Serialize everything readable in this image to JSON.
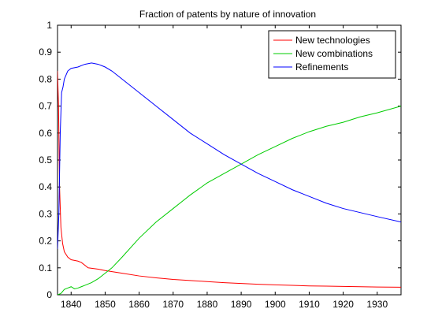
{
  "chart_data": {
    "type": "line",
    "title": "Fraction of patents by nature of innovation",
    "xlabel": "",
    "ylabel": "",
    "xlim": [
      1836,
      1937
    ],
    "ylim": [
      0,
      1
    ],
    "xticks": [
      1840,
      1850,
      1860,
      1870,
      1880,
      1890,
      1900,
      1910,
      1920,
      1930
    ],
    "yticks": [
      0,
      0.1,
      0.2,
      0.3,
      0.4,
      0.5,
      0.6,
      0.7,
      0.8,
      0.9,
      1
    ],
    "ytick_labels": [
      "0",
      "0.1",
      "0.2",
      "0.3",
      "0.4",
      "0.5",
      "0.6",
      "0.7",
      "0.8",
      "0.9",
      "1"
    ],
    "grid": false,
    "legend_position": "top-right",
    "series": [
      {
        "name": "New technologies",
        "color": "#ff0000",
        "x": [
          1836,
          1836.3,
          1836.6,
          1837,
          1837.5,
          1838,
          1839,
          1840,
          1842,
          1843,
          1845,
          1848,
          1850,
          1855,
          1860,
          1865,
          1870,
          1875,
          1880,
          1885,
          1890,
          1895,
          1900,
          1905,
          1910,
          1915,
          1920,
          1925,
          1930,
          1937
        ],
        "y": [
          0.83,
          0.7,
          0.4,
          0.25,
          0.19,
          0.16,
          0.14,
          0.13,
          0.125,
          0.12,
          0.1,
          0.095,
          0.09,
          0.08,
          0.07,
          0.063,
          0.057,
          0.053,
          0.049,
          0.045,
          0.042,
          0.039,
          0.037,
          0.035,
          0.033,
          0.032,
          0.031,
          0.03,
          0.029,
          0.028
        ]
      },
      {
        "name": "New combinations",
        "color": "#00cc00",
        "x": [
          1836,
          1837,
          1838,
          1839,
          1840,
          1841,
          1842,
          1843,
          1844,
          1845,
          1846,
          1848,
          1850,
          1852,
          1855,
          1860,
          1865,
          1870,
          1875,
          1880,
          1885,
          1890,
          1895,
          1900,
          1905,
          1910,
          1915,
          1920,
          1925,
          1930,
          1937
        ],
        "y": [
          0.0,
          0.005,
          0.02,
          0.025,
          0.03,
          0.022,
          0.025,
          0.03,
          0.035,
          0.04,
          0.045,
          0.06,
          0.08,
          0.1,
          0.14,
          0.21,
          0.27,
          0.32,
          0.37,
          0.415,
          0.45,
          0.485,
          0.52,
          0.55,
          0.58,
          0.605,
          0.625,
          0.64,
          0.66,
          0.675,
          0.7
        ]
      },
      {
        "name": "Refinements",
        "color": "#0000ff",
        "x": [
          1836,
          1836.4,
          1836.8,
          1837.2,
          1837.6,
          1838,
          1839,
          1840,
          1842,
          1844,
          1846,
          1848,
          1850,
          1852,
          1855,
          1860,
          1865,
          1870,
          1875,
          1880,
          1885,
          1890,
          1895,
          1900,
          1905,
          1910,
          1915,
          1920,
          1925,
          1930,
          1937
        ],
        "y": [
          0.17,
          0.3,
          0.6,
          0.75,
          0.77,
          0.8,
          0.83,
          0.84,
          0.845,
          0.855,
          0.86,
          0.855,
          0.845,
          0.83,
          0.8,
          0.75,
          0.7,
          0.65,
          0.6,
          0.56,
          0.52,
          0.485,
          0.45,
          0.42,
          0.39,
          0.365,
          0.34,
          0.32,
          0.305,
          0.29,
          0.27
        ]
      }
    ]
  }
}
